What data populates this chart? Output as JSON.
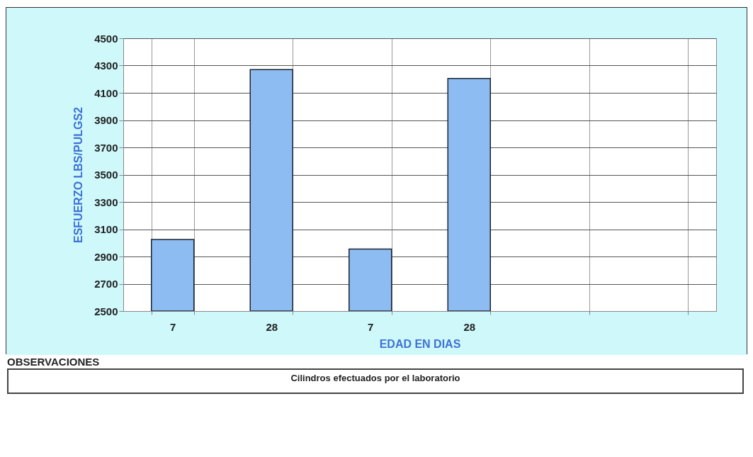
{
  "chart_data": {
    "type": "bar",
    "xlabel": "EDAD EN DIAS",
    "ylabel": "ESFUERZO LBS/PULGS2",
    "categories": [
      "7",
      "28",
      "7",
      "28",
      null,
      null
    ],
    "values": [
      3025,
      4270,
      2955,
      4205,
      null,
      null
    ],
    "color": "#8cbcf2",
    "ylim": [
      2500,
      4500
    ],
    "yticks": [
      2500,
      2700,
      2900,
      3100,
      3300,
      3500,
      3700,
      3900,
      4100,
      4300,
      4500
    ],
    "grid": true,
    "annotations": [
      "OBSERVACIONES",
      "Cilindros efectuados por el laboratorio"
    ]
  }
}
